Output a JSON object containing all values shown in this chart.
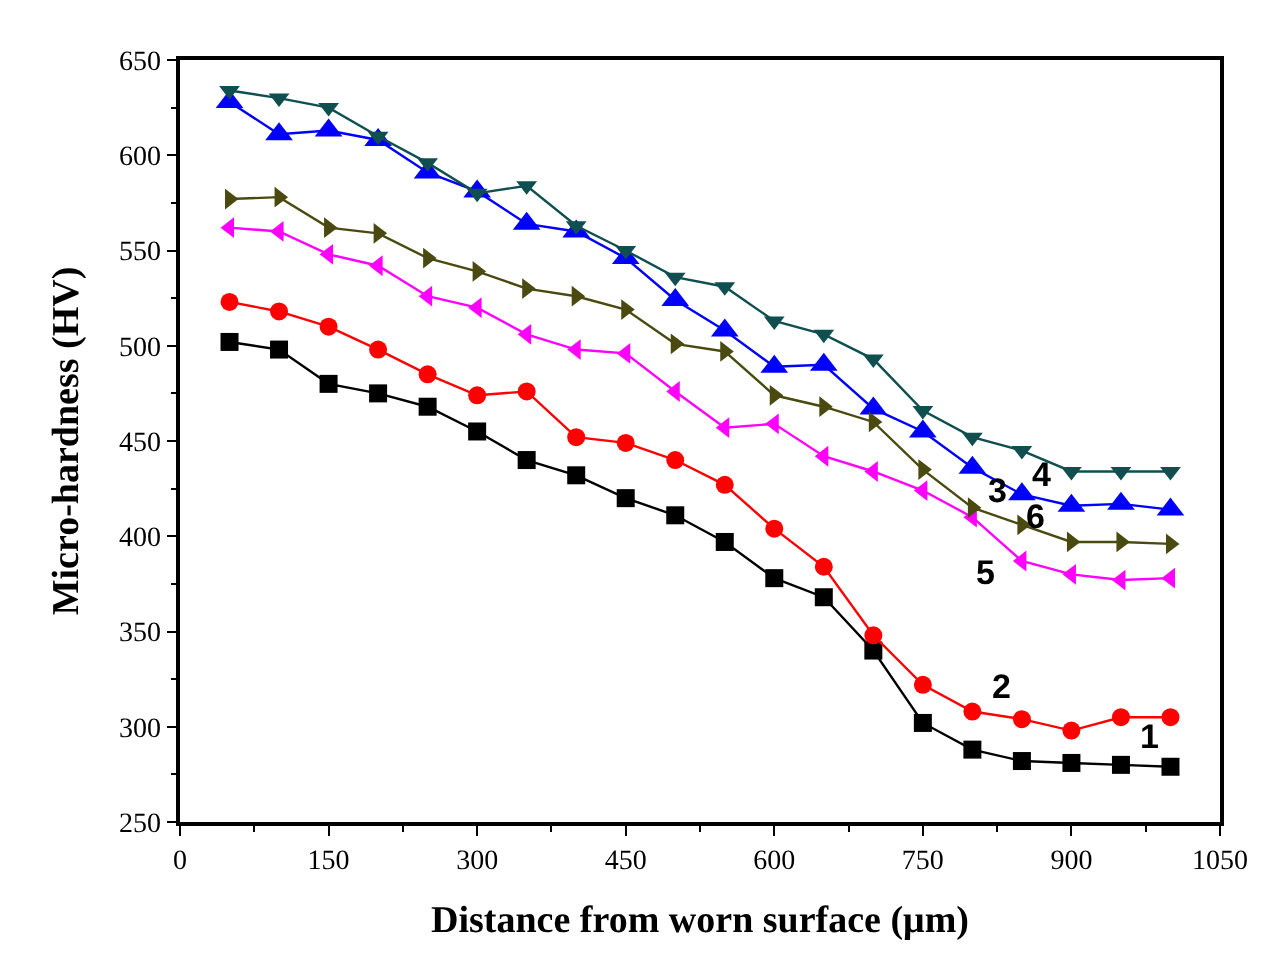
{
  "chart_data": {
    "type": "line",
    "xlabel": "Distance from worn surface (μm)",
    "ylabel": "Micro-hardness (HV)",
    "x": [
      50,
      100,
      150,
      200,
      250,
      300,
      350,
      400,
      450,
      500,
      550,
      600,
      650,
      700,
      750,
      800,
      850,
      900,
      950,
      1000
    ],
    "xlim": [
      0,
      1050
    ],
    "xticks": [
      0,
      150,
      300,
      450,
      600,
      750,
      900,
      1050
    ],
    "ylim": [
      250,
      650
    ],
    "yticks": [
      250,
      300,
      350,
      400,
      450,
      500,
      550,
      600,
      650
    ],
    "legend": false,
    "series": [
      {
        "name": "1",
        "color": "#000000",
        "marker": "square",
        "values": [
          502,
          498,
          480,
          475,
          468,
          455,
          440,
          432,
          420,
          411,
          397,
          378,
          368,
          340,
          302,
          288,
          282,
          281,
          280,
          279
        ]
      },
      {
        "name": "2",
        "color": "#ff0000",
        "marker": "circle",
        "values": [
          523,
          518,
          510,
          498,
          485,
          474,
          476,
          452,
          449,
          440,
          427,
          404,
          384,
          348,
          322,
          308,
          304,
          298,
          305,
          305
        ]
      },
      {
        "name": "3",
        "color": "#0000ff",
        "marker": "triangle-up",
        "values": [
          628,
          611,
          613,
          608,
          591,
          581,
          564,
          560,
          546,
          524,
          508,
          489,
          490,
          467,
          455,
          436,
          422,
          416,
          417,
          414
        ]
      },
      {
        "name": "4",
        "color": "#0f4f4f",
        "marker": "triangle-down",
        "values": [
          634,
          630,
          625,
          610,
          596,
          580,
          584,
          563,
          550,
          536,
          531,
          513,
          506,
          493,
          466,
          452,
          445,
          434,
          434,
          434
        ]
      },
      {
        "name": "5",
        "color": "#ff00ff",
        "marker": "triangle-left",
        "values": [
          562,
          560,
          548,
          542,
          526,
          520,
          506,
          498,
          496,
          476,
          457,
          459,
          442,
          434,
          424,
          410,
          387,
          380,
          377,
          378
        ]
      },
      {
        "name": "6",
        "color": "#4a4a10",
        "marker": "triangle-right",
        "values": [
          577,
          578,
          562,
          559,
          546,
          539,
          530,
          526,
          519,
          501,
          497,
          474,
          468,
          460,
          435,
          415,
          406,
          397,
          397,
          396
        ]
      }
    ]
  }
}
